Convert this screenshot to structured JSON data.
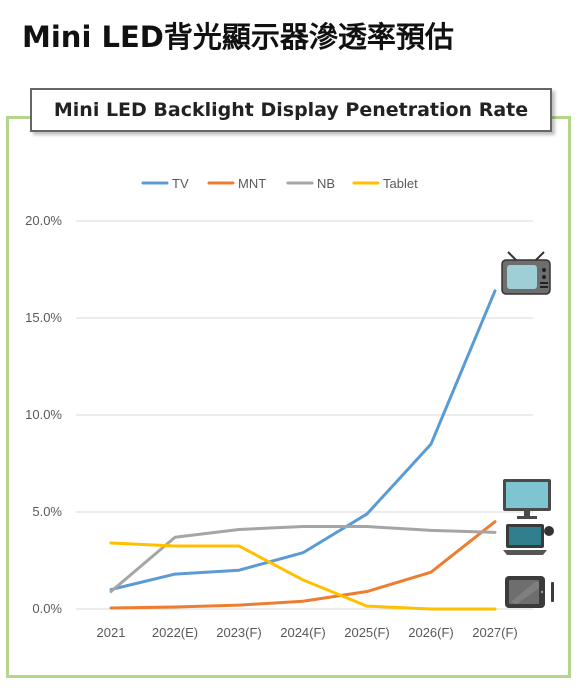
{
  "page": {
    "heading": "Mini LED背光顯示器滲透率預估"
  },
  "chart_data": {
    "type": "line",
    "title": "Mini LED Backlight Display Penetration Rate",
    "xlabel": "",
    "ylabel": "",
    "categories": [
      "2021",
      "2022(E)",
      "2023(F)",
      "2024(F)",
      "2025(F)",
      "2026(F)",
      "2027(F)"
    ],
    "y_ticks": [
      "0.0%",
      "5.0%",
      "10.0%",
      "15.0%",
      "20.0%"
    ],
    "ylim": [
      0,
      20
    ],
    "y_unit": "%",
    "grid": true,
    "legend_position": "top",
    "series": [
      {
        "name": "TV",
        "color": "#5b9bd5",
        "values": [
          1.0,
          1.8,
          2.0,
          2.9,
          4.9,
          8.5,
          16.4
        ],
        "end_icon": "tv-icon"
      },
      {
        "name": "MNT",
        "color": "#ed7d31",
        "values": [
          0.05,
          0.1,
          0.2,
          0.4,
          0.9,
          1.9,
          4.5
        ],
        "end_icon": "monitor-icon"
      },
      {
        "name": "NB",
        "color": "#a5a5a5",
        "values": [
          0.9,
          3.7,
          4.1,
          4.25,
          4.25,
          4.05,
          3.95
        ],
        "end_icon": "laptop-icon"
      },
      {
        "name": "Tablet",
        "color": "#ffc000",
        "values": [
          3.4,
          3.25,
          3.25,
          1.5,
          0.15,
          0.0,
          0.0
        ],
        "end_icon": "tablet-icon"
      }
    ]
  }
}
